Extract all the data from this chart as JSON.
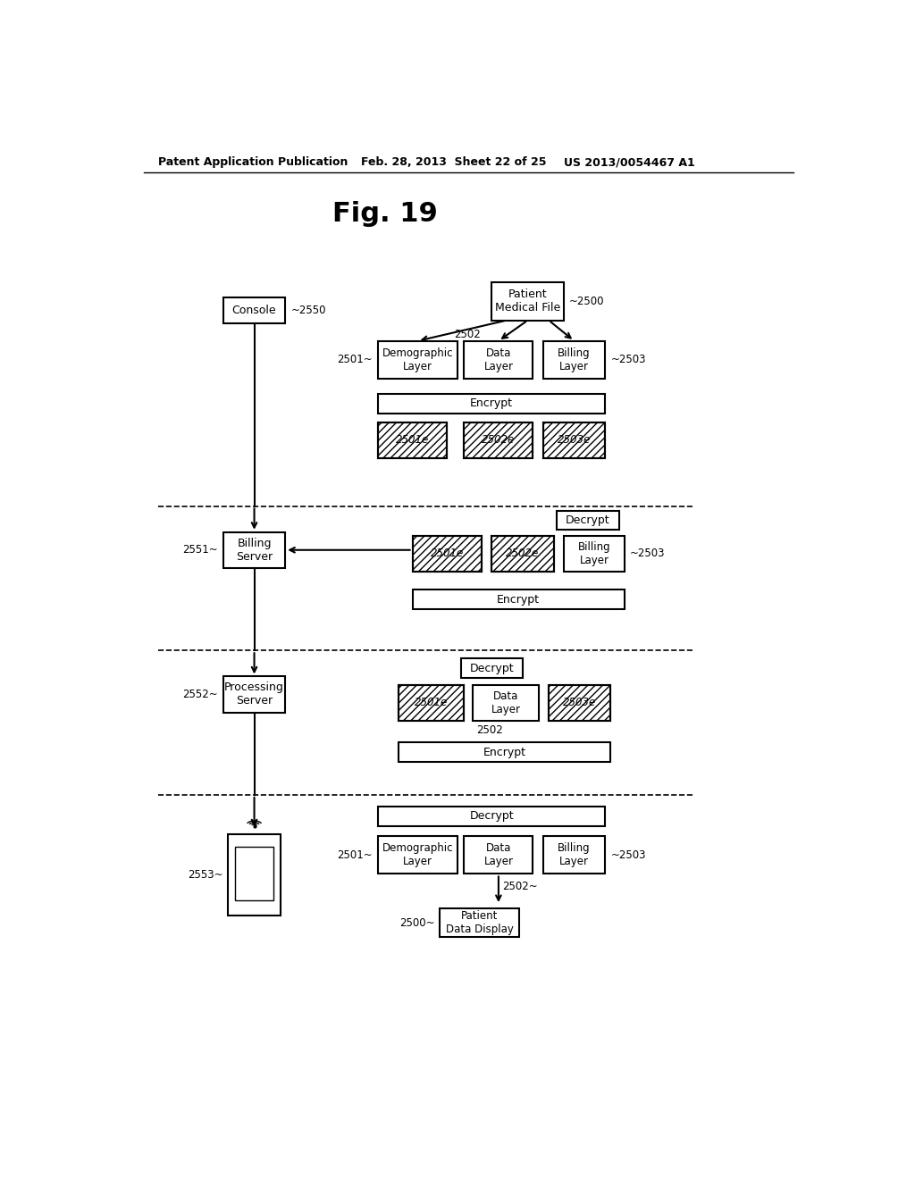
{
  "title_fig": "Fig. 19",
  "header_left": "Patent Application Publication",
  "header_mid": "Feb. 28, 2013  Sheet 22 of 25",
  "header_right": "US 2013/0054467 A1",
  "bg_color": "#ffffff"
}
